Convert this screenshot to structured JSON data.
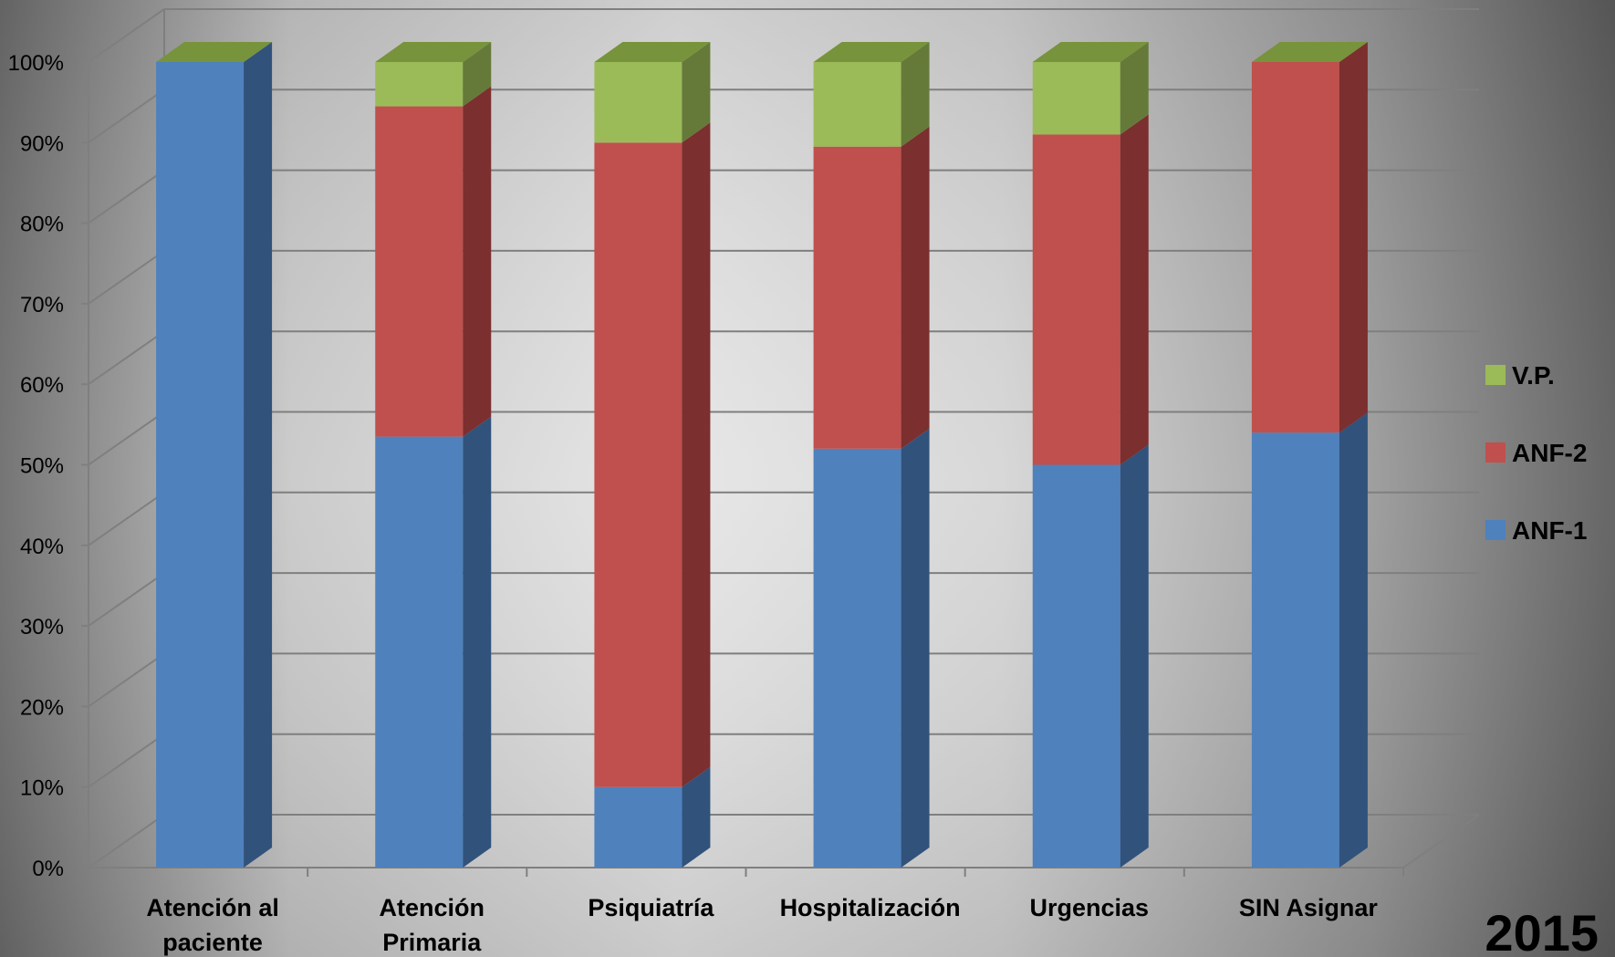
{
  "year_label": "2015",
  "chart_data": {
    "type": "bar",
    "stacked": true,
    "percent_stacked": true,
    "three_d": true,
    "categories": [
      [
        "Atención al",
        "paciente"
      ],
      [
        "Atención",
        "Primaria"
      ],
      [
        "Psiquiatría"
      ],
      [
        "Hospitalización"
      ],
      [
        "Urgencias"
      ],
      [
        "SIN Asignar"
      ]
    ],
    "series": [
      {
        "name": "ANF-1",
        "values": [
          100,
          53.5,
          10,
          52,
          50,
          54
        ],
        "color": "#4f81bd",
        "side_color": "#31527b",
        "top_color": "#6f98cc"
      },
      {
        "name": "ANF-2",
        "values": [
          0,
          41,
          80,
          37.5,
          41,
          46
        ],
        "color": "#c0504d",
        "side_color": "#7b2f2e",
        "top_color": "#d0706d"
      },
      {
        "name": "V.P.",
        "values": [
          0,
          5.5,
          10,
          10.5,
          9,
          0
        ],
        "color": "#9bbb59",
        "side_color": "#657a39",
        "top_color": "#77933c"
      }
    ],
    "y_ticks": [
      "0%",
      "10%",
      "20%",
      "30%",
      "40%",
      "50%",
      "60%",
      "70%",
      "80%",
      "90%",
      "100%"
    ],
    "ylim": [
      0,
      100
    ],
    "grid": true,
    "legend_position": "right",
    "legend_order": [
      "V.P.",
      "ANF-2",
      "ANF-1"
    ]
  }
}
